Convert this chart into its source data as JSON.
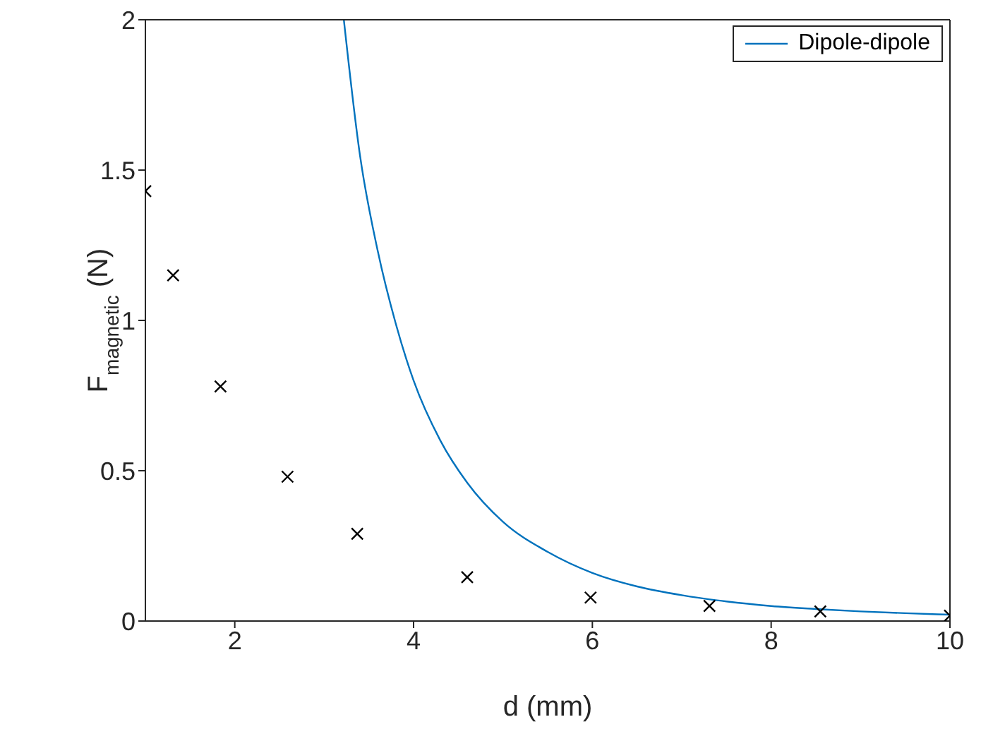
{
  "chart_data": {
    "type": "line",
    "xlabel": "d (mm)",
    "ylabel": "F$_{magnetic}$ (N)",
    "xlim": [
      1,
      10
    ],
    "ylim": [
      0,
      2
    ],
    "xticks": [
      2,
      4,
      6,
      8,
      10
    ],
    "yticks": [
      0,
      0.5,
      1,
      1.5,
      2
    ],
    "grid": false,
    "legend": "top right",
    "series": [
      {
        "name": "Dipole-dipole",
        "color": "#0072bd",
        "line_style": "solid",
        "marker": "none",
        "x": [
          3.22,
          3.4,
          3.6,
          3.8,
          4,
          4.3,
          4.6,
          5,
          5.5,
          6,
          6.5,
          7,
          7.5,
          8,
          8.5,
          9,
          9.5,
          10
        ],
        "values": [
          2.0,
          1.55,
          1.23,
          0.99,
          0.8,
          0.6,
          0.46,
          0.33,
          0.23,
          0.16,
          0.115,
          0.086,
          0.065,
          0.05,
          0.04,
          0.032,
          0.026,
          0.021
        ]
      },
      {
        "type": "scatter",
        "color": "#000000",
        "marker": "cross",
        "x": [
          1,
          1.31,
          1.84,
          2.59,
          3.37,
          4.6,
          5.98,
          7.31,
          8.55,
          10
        ],
        "values": [
          1.43,
          1.15,
          0.78,
          0.48,
          0.29,
          0.146,
          0.078,
          0.05,
          0.032,
          0.018
        ]
      }
    ]
  }
}
